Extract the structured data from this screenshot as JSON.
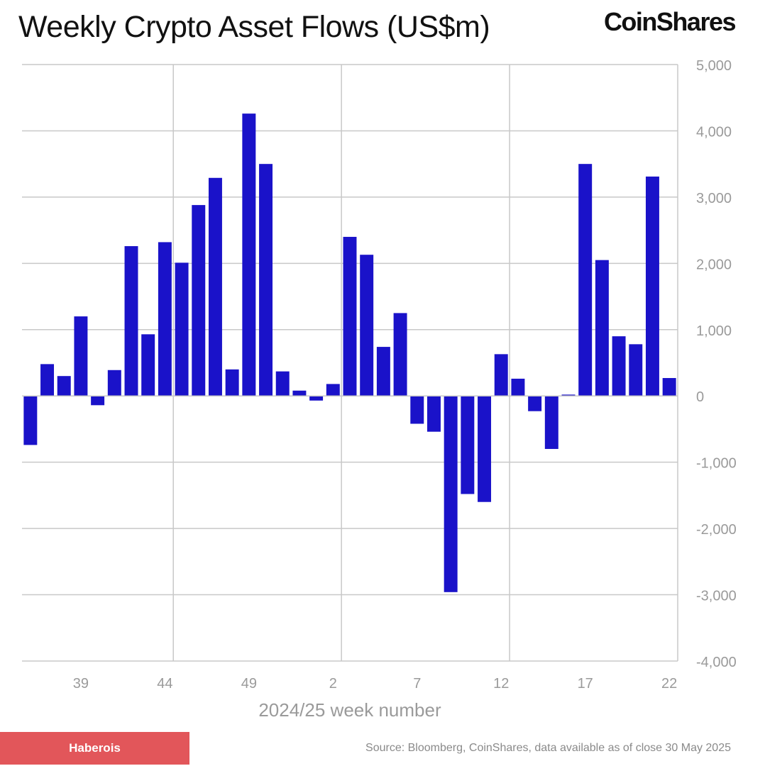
{
  "header": {
    "title": "Weekly Crypto Asset Flows (US$m)",
    "logo_text": "CoinShares"
  },
  "footer": {
    "badge_label": "Haberois",
    "source": "Source: Bloomberg, CoinShares, data available as of close 30 May 2025"
  },
  "colors": {
    "bar": "#1a12c9",
    "grid": "#c8c8c8",
    "axis_text": "#9a9a9a",
    "badge": "#e2565a"
  },
  "chart_data": {
    "type": "bar",
    "title": "Weekly Crypto Asset Flows (US$m)",
    "xlabel": "2024/25 week number",
    "ylabel": "",
    "ylim": [
      -4000,
      5000
    ],
    "yticks": [
      5000,
      4000,
      3000,
      2000,
      1000,
      0,
      -1000,
      -2000,
      -3000,
      -4000
    ],
    "ytick_labels": [
      "5,000",
      "4,000",
      "3,000",
      "2,000",
      "1,000",
      "0",
      "-1,000",
      "-2,000",
      "-3,000",
      "-4,000"
    ],
    "xtick_labels": [
      "39",
      "44",
      "49",
      "2",
      "7",
      "12",
      "17",
      "22"
    ],
    "categories": [
      "36",
      "37",
      "38",
      "39",
      "40",
      "41",
      "42",
      "43",
      "44",
      "45",
      "46",
      "47",
      "48",
      "49",
      "50",
      "51",
      "52",
      "1",
      "2",
      "3",
      "4",
      "5",
      "6",
      "7",
      "8",
      "9",
      "10",
      "11",
      "12",
      "13",
      "14",
      "15",
      "16",
      "17",
      "18",
      "19",
      "20",
      "21",
      "22"
    ],
    "values": [
      -740,
      480,
      300,
      1200,
      -140,
      390,
      2260,
      930,
      2320,
      2010,
      2880,
      3290,
      400,
      4260,
      3500,
      370,
      80,
      -70,
      180,
      2400,
      2130,
      740,
      1250,
      -420,
      -540,
      -2960,
      -1480,
      -1600,
      630,
      260,
      -230,
      -800,
      20,
      3500,
      2050,
      900,
      780,
      3310,
      270
    ],
    "grid": true,
    "legend": "none"
  }
}
